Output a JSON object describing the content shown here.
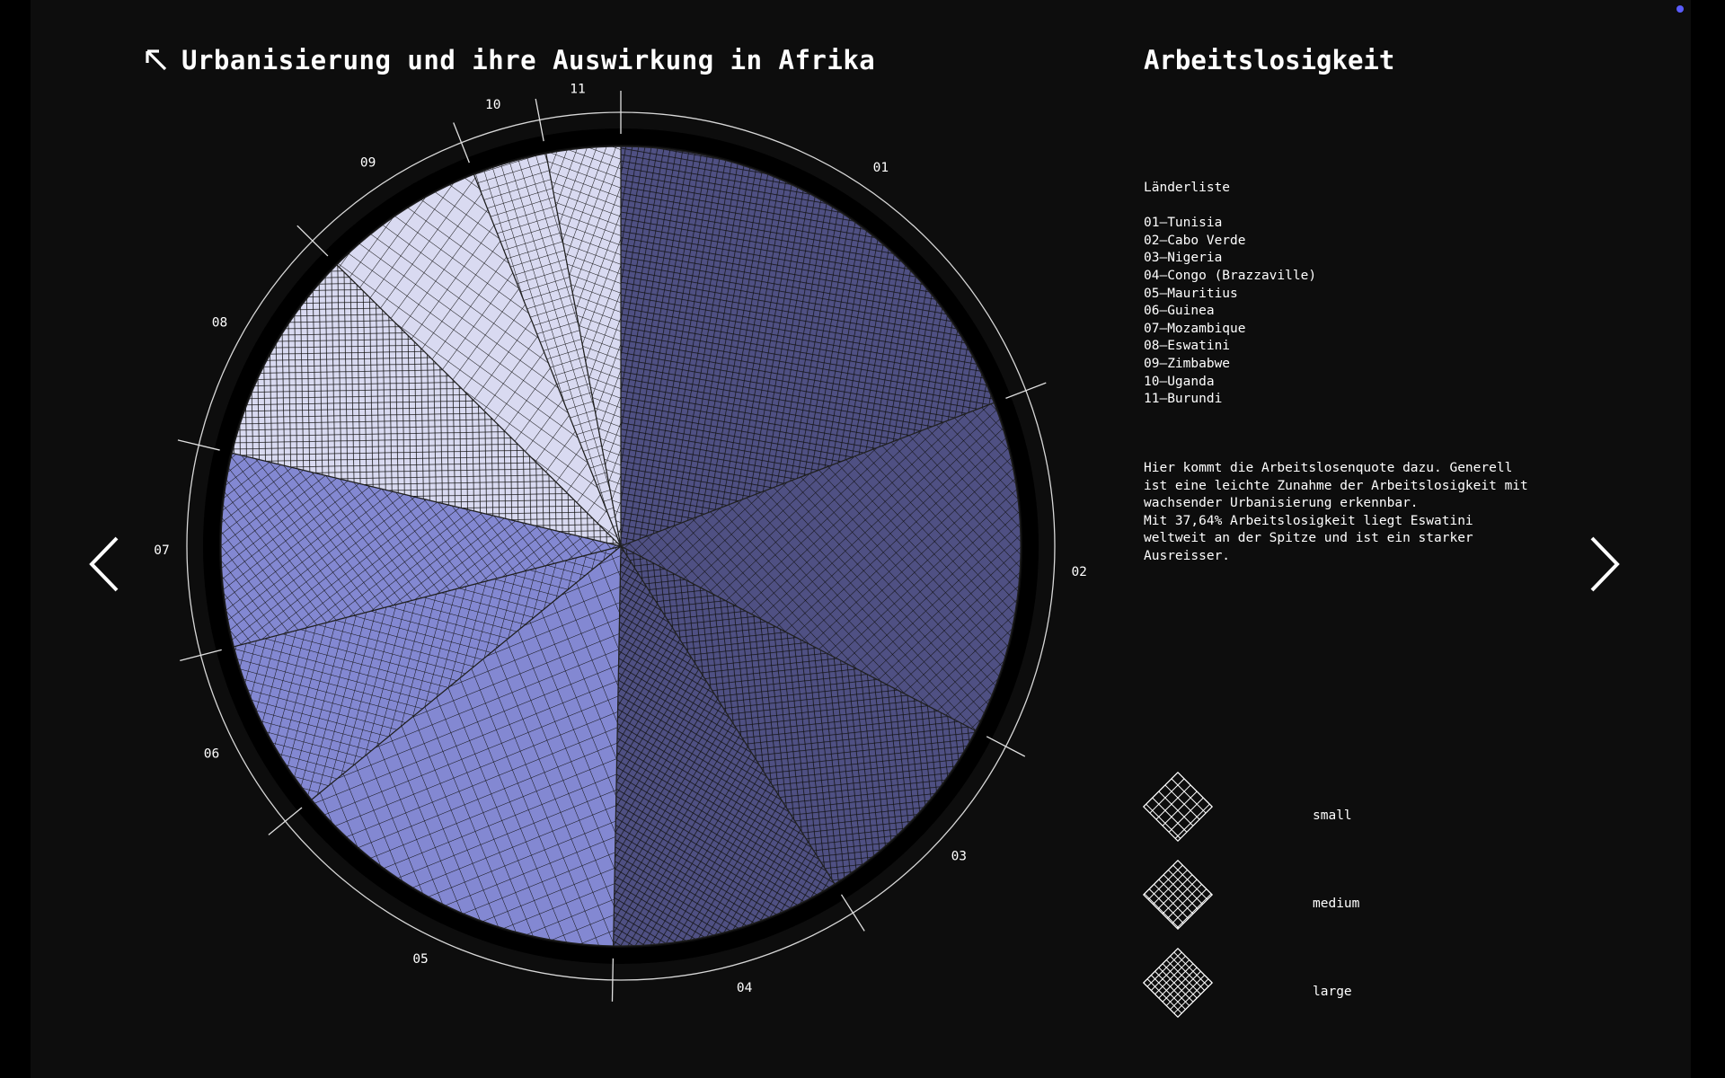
{
  "header": {
    "title": "Urbanisierung und ihre Auswirkung in Afrika",
    "panel_title": "Arbeitslosigkeit"
  },
  "country_list": {
    "heading": "Länderliste",
    "items": [
      "01–Tunisia",
      "02–Cabo Verde",
      "03–Nigeria",
      "04–Congo (Brazzaville)",
      "05–Mauritius",
      "06–Guinea",
      "07–Mozambique",
      "08–Eswatini",
      "09–Zimbabwe",
      "10–Uganda",
      "11–Burundi"
    ]
  },
  "description": "Hier kommt die Arbeitslosenquote dazu. Generell\nist eine leichte Zunahme der Arbeitslosigkeit mit\nwachsender Urbanisierung erkennbar.\nMit 37,64% Arbeitslosigkeit liegt Eswatini\nweltweit an der Spitze und ist ein starker\nAusreisser.",
  "legend": {
    "items": [
      {
        "label": "small",
        "level": 1
      },
      {
        "label": "medium",
        "level": 2
      },
      {
        "label": "large",
        "level": 3
      }
    ]
  },
  "colors": {
    "background": "#0d0d0d",
    "light": "#d9daf1",
    "mid": "#8388d2",
    "dark": "#4f5083",
    "hatch": "#101010"
  },
  "chart_data": {
    "type": "pie",
    "categories": [
      "01",
      "02",
      "03",
      "04",
      "05",
      "06",
      "07",
      "08",
      "09",
      "10",
      "11"
    ],
    "values": [
      64,
      45,
      28,
      31,
      46,
      23,
      26,
      29,
      22,
      10,
      10
    ],
    "tones": [
      "dark",
      "dark",
      "dark",
      "dark",
      "mid",
      "mid",
      "mid",
      "light",
      "light",
      "light",
      "light"
    ],
    "hatch_levels": [
      3,
      2,
      3,
      3,
      1,
      2,
      2,
      3,
      1,
      2,
      2
    ]
  }
}
